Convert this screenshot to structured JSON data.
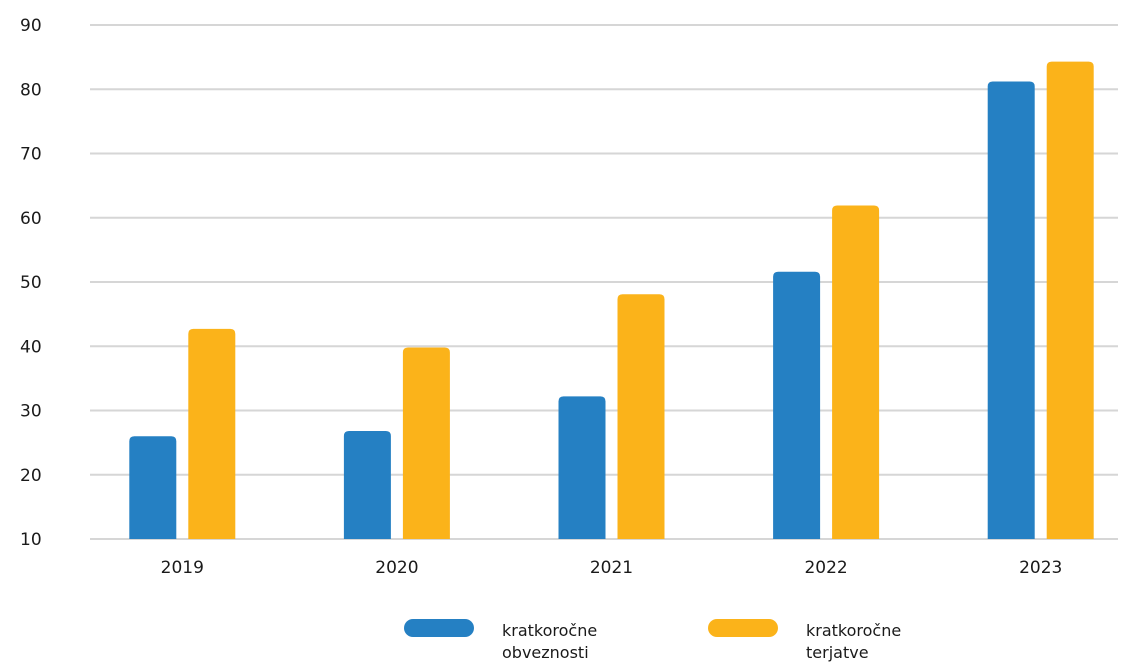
{
  "chart_data": {
    "type": "bar",
    "title": "",
    "xlabel": "",
    "ylabel": "",
    "categories": [
      "2019",
      "2020",
      "2021",
      "2022",
      "2023"
    ],
    "series": [
      {
        "name": "kratkoročne obveznosti",
        "name_lines": [
          "kratkoročne",
          "obveznosti"
        ],
        "color": "#2580c3",
        "values": [
          26,
          26.8,
          32.2,
          51.6,
          81.2
        ]
      },
      {
        "name": "kratkoročne terjatve",
        "name_lines": [
          "kratkoročne",
          "terjatve"
        ],
        "color": "#fbb31a",
        "values": [
          42.7,
          39.8,
          48.1,
          61.9,
          84.3
        ]
      }
    ],
    "ylim": [
      10,
      90
    ],
    "yticks": [
      10,
      20,
      30,
      40,
      50,
      60,
      70,
      80,
      90
    ],
    "grid": true,
    "legend_position": "bottom-center"
  }
}
